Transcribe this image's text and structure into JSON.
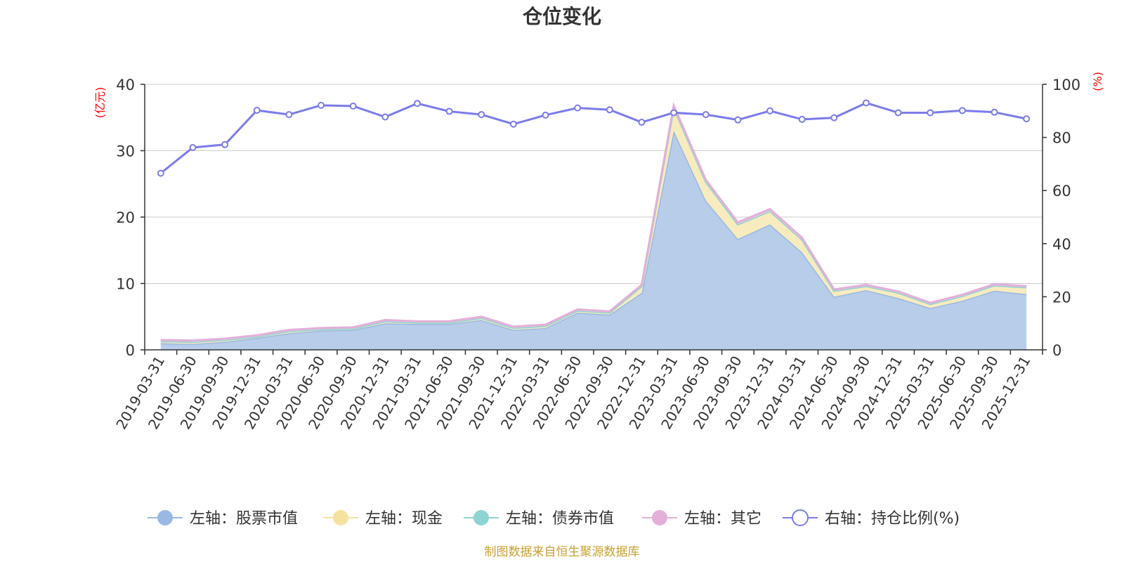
{
  "chart_data": {
    "type": "area",
    "title": "仓位变化",
    "left_unit": "(亿元)",
    "right_unit": "(%)",
    "ylim_left": [
      0,
      40
    ],
    "yticks_left": [
      0,
      10,
      20,
      30,
      40
    ],
    "ylim_right": [
      0,
      100
    ],
    "yticks_right": [
      0,
      20,
      40,
      60,
      80,
      100
    ],
    "categories": [
      "2019-03-31",
      "2019-06-30",
      "2019-09-30",
      "2019-12-31",
      "2020-03-31",
      "2020-06-30",
      "2020-09-30",
      "2020-12-31",
      "2021-03-31",
      "2021-06-30",
      "2021-09-30",
      "2021-12-31",
      "2022-03-31",
      "2022-06-30",
      "2022-09-30",
      "2022-12-31",
      "2023-03-31",
      "2023-06-30",
      "2023-09-30",
      "2023-12-31",
      "2024-03-31",
      "2024-06-30",
      "2024-09-30",
      "2024-12-31",
      "2025-03-31",
      "2025-06-30",
      "2025-09-30",
      "2025-12-31"
    ],
    "stacked_series": [
      {
        "name": "左轴：股票市值",
        "color": "#9ab8e2",
        "fill": "#b8cdea",
        "values": [
          1.0,
          0.9,
          1.2,
          1.8,
          2.5,
          2.9,
          3.0,
          4.0,
          3.9,
          3.9,
          4.5,
          3.0,
          3.3,
          5.6,
          5.3,
          8.6,
          33.0,
          22.5,
          16.7,
          18.9,
          14.7,
          8.0,
          9.0,
          7.8,
          6.3,
          7.4,
          8.9,
          8.4
        ]
      },
      {
        "name": "左轴：现金",
        "color": "#f5e2a0",
        "fill": "#f8ecbe",
        "values": [
          0.3,
          0.3,
          0.3,
          0.2,
          0.3,
          0.2,
          0.2,
          0.3,
          0.2,
          0.2,
          0.3,
          0.3,
          0.3,
          0.3,
          0.3,
          1.0,
          3.5,
          2.8,
          2.2,
          2.0,
          1.9,
          0.9,
          0.6,
          0.8,
          0.6,
          0.7,
          0.8,
          1.0
        ]
      },
      {
        "name": "左轴：债券市值",
        "color": "#8fd4d4",
        "fill": "#a8dede",
        "values": [
          0,
          0,
          0,
          0,
          0,
          0,
          0,
          0,
          0,
          0,
          0,
          0,
          0,
          0,
          0,
          0,
          0,
          0,
          0,
          0,
          0,
          0,
          0,
          0,
          0,
          0,
          0,
          0
        ]
      },
      {
        "name": "左轴：其它",
        "color": "#e2b0d8",
        "fill": "#ecc8e4",
        "values": [
          0.2,
          0.2,
          0.2,
          0.2,
          0.2,
          0.2,
          0.2,
          0.2,
          0.2,
          0.2,
          0.2,
          0.2,
          0.2,
          0.2,
          0.2,
          0.2,
          0.3,
          0.3,
          0.3,
          0.3,
          0.3,
          0.2,
          0.2,
          0.2,
          0.2,
          0.2,
          0.2,
          0.2
        ]
      }
    ],
    "line_series": {
      "name": "右轴：持仓比例(%)",
      "color": "#7b7bea",
      "values": [
        66.5,
        76.2,
        77.3,
        90.2,
        88.6,
        92.1,
        91.8,
        87.7,
        92.8,
        89.8,
        88.6,
        85.0,
        88.4,
        91.1,
        90.4,
        85.7,
        89.3,
        88.6,
        86.6,
        90.0,
        86.8,
        87.4,
        93.0,
        89.3,
        89.3,
        90.1,
        89.5,
        87.0
      ]
    },
    "legend": [
      "左轴：股票市值",
      "左轴：现金",
      "左轴：债券市值",
      "左轴：其它",
      "右轴：持仓比例(%)"
    ],
    "legend_position": "bottom-center",
    "source_note": "制图数据来自恒生聚源数据库"
  },
  "colors": {
    "axis": "#333333",
    "grid": "#cccccc",
    "unit": "#ff0000",
    "source": "#c8a030"
  }
}
